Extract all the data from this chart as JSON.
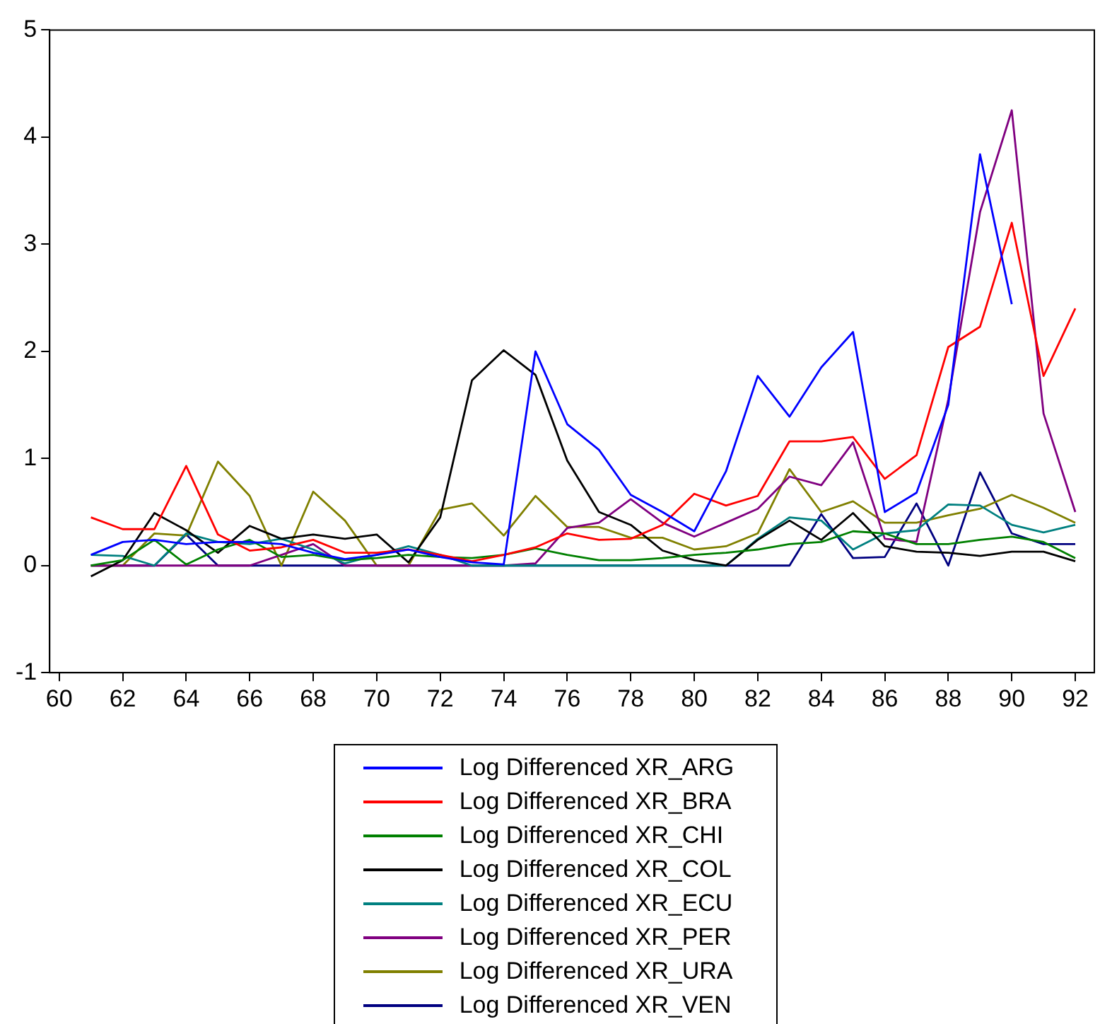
{
  "chart_data": {
    "type": "line",
    "x": [
      61,
      62,
      63,
      64,
      65,
      66,
      67,
      68,
      69,
      70,
      71,
      72,
      73,
      74,
      75,
      76,
      77,
      78,
      79,
      80,
      81,
      82,
      83,
      84,
      85,
      86,
      87,
      88,
      89,
      90,
      91,
      92
    ],
    "series": [
      {
        "name": "Log Differenced XR_ARG",
        "color": "#0000ff",
        "values": [
          0.1,
          0.22,
          0.24,
          0.2,
          0.22,
          0.22,
          0.2,
          0.12,
          0.06,
          0.1,
          0.15,
          0.08,
          0.03,
          0.01,
          2.0,
          1.32,
          1.08,
          0.66,
          0.5,
          0.32,
          0.88,
          1.77,
          1.39,
          1.85,
          2.18,
          0.5,
          0.68,
          1.5,
          3.84,
          2.44,
          null,
          null
        ]
      },
      {
        "name": "Log Differenced XR_BRA",
        "color": "#ff0000",
        "values": [
          0.45,
          0.34,
          0.34,
          0.93,
          0.29,
          0.14,
          0.17,
          0.24,
          0.12,
          0.12,
          0.15,
          0.1,
          0.04,
          0.1,
          0.17,
          0.3,
          0.24,
          0.25,
          0.38,
          0.67,
          0.56,
          0.65,
          1.16,
          1.16,
          1.2,
          0.81,
          1.03,
          2.04,
          2.23,
          3.2,
          1.77,
          2.4
        ]
      },
      {
        "name": "Log Differenced XR_CHI",
        "color": "#008000",
        "values": [
          0.0,
          0.05,
          0.24,
          0.01,
          0.15,
          0.24,
          0.08,
          0.1,
          0.05,
          0.07,
          0.1,
          0.08,
          0.07,
          0.1,
          0.16,
          0.1,
          0.05,
          0.05,
          0.07,
          0.1,
          0.12,
          0.15,
          0.2,
          0.22,
          0.32,
          0.3,
          0.2,
          0.2,
          0.24,
          0.27,
          0.22,
          0.07
        ]
      },
      {
        "name": "Log Differenced XR_COL",
        "color": "#000000",
        "values": [
          -0.1,
          0.05,
          0.49,
          0.33,
          0.12,
          0.37,
          0.25,
          0.29,
          0.25,
          0.29,
          0.03,
          0.45,
          1.73,
          2.01,
          1.78,
          0.98,
          0.5,
          0.38,
          0.14,
          0.05,
          0.0,
          0.24,
          0.42,
          0.24,
          0.49,
          0.18,
          0.13,
          0.12,
          0.09,
          0.13,
          0.13,
          0.04
        ]
      },
      {
        "name": "Log Differenced XR_ECU",
        "color": "#008080",
        "values": [
          0.1,
          0.09,
          0.0,
          0.3,
          0.22,
          0.2,
          0.25,
          0.15,
          0.02,
          0.1,
          0.18,
          0.1,
          0.0,
          0.0,
          0.0,
          0.0,
          0.0,
          0.0,
          0.0,
          0.0,
          0.0,
          0.25,
          0.45,
          0.42,
          0.15,
          0.3,
          0.33,
          0.57,
          0.56,
          0.38,
          0.31,
          0.38
        ]
      },
      {
        "name": "Log Differenced XR_PER",
        "color": "#800080",
        "values": [
          0.0,
          0.0,
          0.0,
          0.0,
          0.0,
          0.0,
          0.1,
          0.2,
          0.0,
          0.0,
          0.0,
          0.0,
          0.0,
          0.0,
          0.02,
          0.35,
          0.4,
          0.62,
          0.4,
          0.27,
          0.4,
          0.53,
          0.83,
          0.75,
          1.15,
          0.25,
          0.22,
          1.55,
          3.3,
          4.25,
          1.42,
          0.5
        ]
      },
      {
        "name": "Log Differenced XR_URA",
        "color": "#808000",
        "values": [
          0.0,
          0.0,
          0.3,
          0.28,
          0.97,
          0.65,
          0.0,
          0.69,
          0.42,
          0.0,
          0.0,
          0.52,
          0.58,
          0.28,
          0.65,
          0.36,
          0.36,
          0.26,
          0.26,
          0.15,
          0.18,
          0.3,
          0.9,
          0.5,
          0.6,
          0.4,
          0.4,
          0.47,
          0.53,
          0.66,
          0.54,
          0.4
        ]
      },
      {
        "name": "Log Differenced XR_VEN",
        "color": "#000080",
        "values": [
          0.0,
          0.0,
          0.0,
          0.29,
          0.0,
          0.0,
          0.0,
          0.0,
          0.0,
          0.0,
          0.0,
          0.0,
          0.0,
          0.0,
          0.0,
          0.0,
          0.0,
          0.0,
          0.0,
          0.0,
          0.0,
          0.0,
          0.0,
          0.48,
          0.07,
          0.08,
          0.58,
          0.0,
          0.87,
          0.3,
          0.2,
          0.2
        ]
      }
    ],
    "xlim": [
      59.7,
      92.6
    ],
    "xticks": [
      60,
      62,
      64,
      66,
      68,
      70,
      72,
      74,
      76,
      78,
      80,
      82,
      84,
      86,
      88,
      90,
      92
    ],
    "ylim": [
      -1,
      5
    ],
    "yticks": [
      -1,
      0,
      1,
      2,
      3,
      4,
      5
    ],
    "grid": false,
    "legend": "bottom",
    "line_style": "solid",
    "marker": "none"
  }
}
